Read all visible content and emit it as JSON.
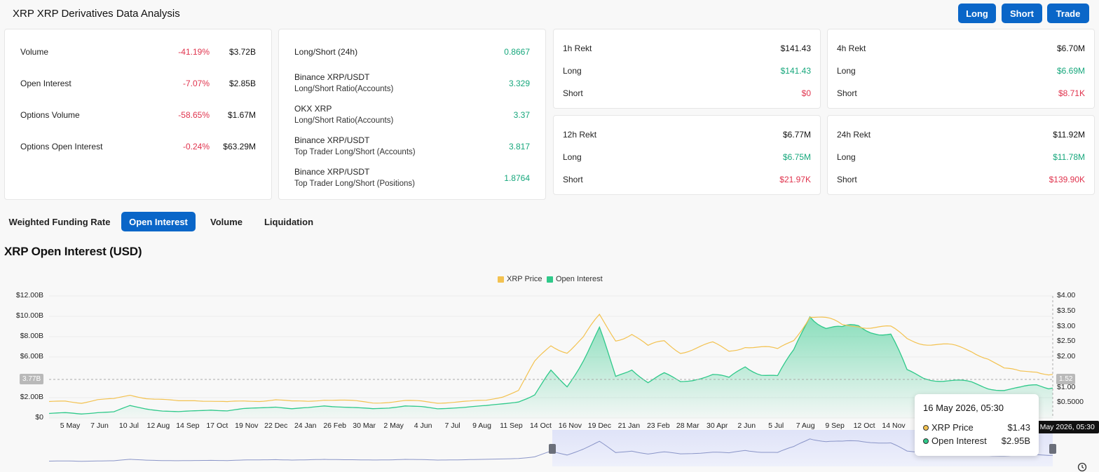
{
  "header": {
    "title": "XRP XRP Derivatives Data Analysis",
    "buttons": {
      "long": "Long",
      "short": "Short",
      "trade": "Trade"
    }
  },
  "overview": {
    "rows": [
      {
        "label": "Volume",
        "change": "-41.19%",
        "value": "$3.72B"
      },
      {
        "label": "Open Interest",
        "change": "-7.07%",
        "value": "$2.85B"
      },
      {
        "label": "Options Volume",
        "change": "-58.65%",
        "value": "$1.67M"
      },
      {
        "label": "Options Open Interest",
        "change": "-0.24%",
        "value": "$63.29M"
      }
    ]
  },
  "ratios": {
    "rows": [
      {
        "label": "Long/Short (24h)",
        "sub": "",
        "value": "0.8667"
      },
      {
        "label": "Binance XRP/USDT",
        "sub": "Long/Short Ratio(Accounts)",
        "value": "3.329"
      },
      {
        "label": "OKX XRP",
        "sub": "Long/Short Ratio(Accounts)",
        "value": "3.37"
      },
      {
        "label": "Binance XRP/USDT",
        "sub": "Top Trader Long/Short (Accounts)",
        "value": "3.817"
      },
      {
        "label": "Binance XRP/USDT",
        "sub": "Top Trader Long/Short (Positions)",
        "value": "1.8764"
      }
    ]
  },
  "rekt": {
    "h1": {
      "title": "1h Rekt",
      "total": "$141.43",
      "long_label": "Long",
      "long": "$141.43",
      "short_label": "Short",
      "short": "$0"
    },
    "h4": {
      "title": "4h Rekt",
      "total": "$6.70M",
      "long_label": "Long",
      "long": "$6.69M",
      "short_label": "Short",
      "short": "$8.71K"
    },
    "h12": {
      "title": "12h Rekt",
      "total": "$6.77M",
      "long_label": "Long",
      "long": "$6.75M",
      "short_label": "Short",
      "short": "$21.97K"
    },
    "h24": {
      "title": "24h Rekt",
      "total": "$11.92M",
      "long_label": "Long",
      "long": "$11.78M",
      "short_label": "Short",
      "short": "$139.90K"
    }
  },
  "tabs": [
    "Weighted Funding Rate",
    "Open Interest",
    "Volume",
    "Liquidation"
  ],
  "active_tab": "Open Interest",
  "chart_heading": "XRP Open Interest (USD)",
  "tooltip": {
    "date": "16 May 2026, 05:30",
    "price_label": "XRP Price",
    "price": "$1.43",
    "oi_label": "Open Interest",
    "oi": "$2.95B"
  },
  "crosshair": {
    "left_value": "3.77B",
    "right_value": "1.52",
    "x_label": "16 May 2026, 05:30"
  },
  "colors": {
    "price": "#f3c250",
    "oi": "#2fc98a",
    "accent": "#0a66c8",
    "negative": "#e0334d",
    "positive": "#16a77c"
  },
  "chart_data": {
    "type": "area",
    "legend": [
      "XRP Price",
      "Open Interest"
    ],
    "x_ticks": [
      "5 May",
      "7 Jun",
      "10 Jul",
      "12 Aug",
      "14 Sep",
      "17 Oct",
      "19 Nov",
      "22 Dec",
      "24 Jan",
      "26 Feb",
      "30 Mar",
      "2 May",
      "4 Jun",
      "7 Jul",
      "9 Aug",
      "11 Sep",
      "14 Oct",
      "16 Nov",
      "19 Dec",
      "21 Jan",
      "23 Feb",
      "28 Mar",
      "30 Apr",
      "2 Jun",
      "5 Jul",
      "7 Aug",
      "9 Sep",
      "12 Oct",
      "14 Nov",
      "17"
    ],
    "y_left_ticks": [
      "$12.00B",
      "$10.00B",
      "$8.00B",
      "$6.00B",
      "$2.00B",
      "$0"
    ],
    "y_left_values": [
      12,
      10,
      8,
      6,
      2,
      0
    ],
    "y_right_ticks": [
      "$4.00",
      "$3.50",
      "$3.00",
      "$2.50",
      "$2.00",
      "$1.00",
      "$0.5000"
    ],
    "y_right_values": [
      4.0,
      3.5,
      3.0,
      2.5,
      2.0,
      1.0,
      0.5
    ],
    "ylim_left": [
      0,
      12
    ],
    "ylim_right": [
      0,
      4
    ],
    "series": [
      {
        "name": "Open Interest",
        "axis": "left",
        "unit": "B USD",
        "values": [
          0.45,
          0.5,
          0.4,
          0.55,
          0.6,
          1.2,
          0.9,
          0.7,
          0.6,
          0.7,
          0.8,
          0.7,
          0.9,
          1.0,
          1.1,
          0.9,
          1.0,
          1.2,
          1.1,
          1.0,
          0.9,
          1.0,
          1.2,
          1.1,
          0.9,
          1.0,
          1.1,
          1.2,
          1.4,
          1.6,
          2.2,
          4.5,
          3.2,
          5.8,
          8.5,
          4.0,
          5.0,
          3.5,
          4.2,
          3.6,
          4.0,
          4.2,
          3.8,
          5.2,
          4.4,
          4.0,
          6.5,
          10.5,
          9.0,
          8.5,
          9.0,
          8.8,
          8.2,
          4.5,
          4.0,
          3.8,
          3.6,
          3.4,
          3.0,
          2.8,
          2.9,
          3.2,
          2.95
        ]
      },
      {
        "name": "XRP Price",
        "axis": "right",
        "unit": "USD",
        "values": [
          0.52,
          0.55,
          0.5,
          0.6,
          0.62,
          0.75,
          0.65,
          0.6,
          0.55,
          0.58,
          0.56,
          0.52,
          0.55,
          0.56,
          0.6,
          0.54,
          0.55,
          0.6,
          0.58,
          0.55,
          0.5,
          0.52,
          0.56,
          0.55,
          0.5,
          0.52,
          0.54,
          0.58,
          0.7,
          0.9,
          1.8,
          2.4,
          2.2,
          2.6,
          3.3,
          2.6,
          2.8,
          2.3,
          2.5,
          2.2,
          2.3,
          2.4,
          2.2,
          2.4,
          2.3,
          2.2,
          2.6,
          3.4,
          3.2,
          3.0,
          3.1,
          3.0,
          2.9,
          2.6,
          2.5,
          2.4,
          2.3,
          2.2,
          2.0,
          1.6,
          1.5,
          1.55,
          1.43
        ]
      }
    ]
  }
}
